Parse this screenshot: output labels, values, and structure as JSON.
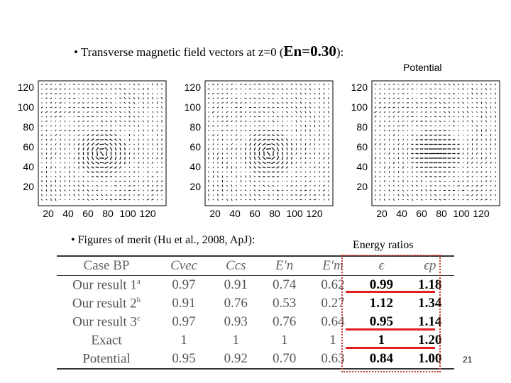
{
  "title": {
    "prefix": "• Transverse magnetic field vectors at z=0 (",
    "en": "En=0.30",
    "suffix": "):"
  },
  "panel3_caption": "Potential",
  "y_ticks": [
    "120",
    "100",
    "80",
    "60",
    "40",
    "20"
  ],
  "x_ticks": [
    "20",
    "40",
    "60",
    "80",
    "100",
    "120"
  ],
  "merit_caption": "• Figures of merit (Hu et al., 2008, ApJ):",
  "energy_caption": "Energy ratios",
  "table": {
    "headers": [
      "Case BP",
      "Cvec",
      "Ccs",
      "E′n",
      "E′m",
      "ϵ",
      "ϵp"
    ],
    "rows": [
      {
        "name": "Our result 1",
        "sup": "a",
        "values": [
          "0.97",
          "0.91",
          "0.74",
          "0.62",
          "0.99",
          "1.18"
        ]
      },
      {
        "name": "Our result 2",
        "sup": "b",
        "values": [
          "0.91",
          "0.76",
          "0.53",
          "0.27",
          "1.12",
          "1.34"
        ]
      },
      {
        "name": "Our result 3",
        "sup": "c",
        "values": [
          "0.97",
          "0.93",
          "0.76",
          "0.64",
          "0.95",
          "1.14"
        ]
      },
      {
        "name": "Exact",
        "sup": "",
        "values": [
          "1",
          "1",
          "1",
          "1",
          "1",
          "1.20"
        ]
      },
      {
        "name": "Potential",
        "sup": "",
        "values": [
          "0.95",
          "0.92",
          "0.70",
          "0.63",
          "0.84",
          "1.00"
        ]
      }
    ]
  },
  "slide_number": "21"
}
